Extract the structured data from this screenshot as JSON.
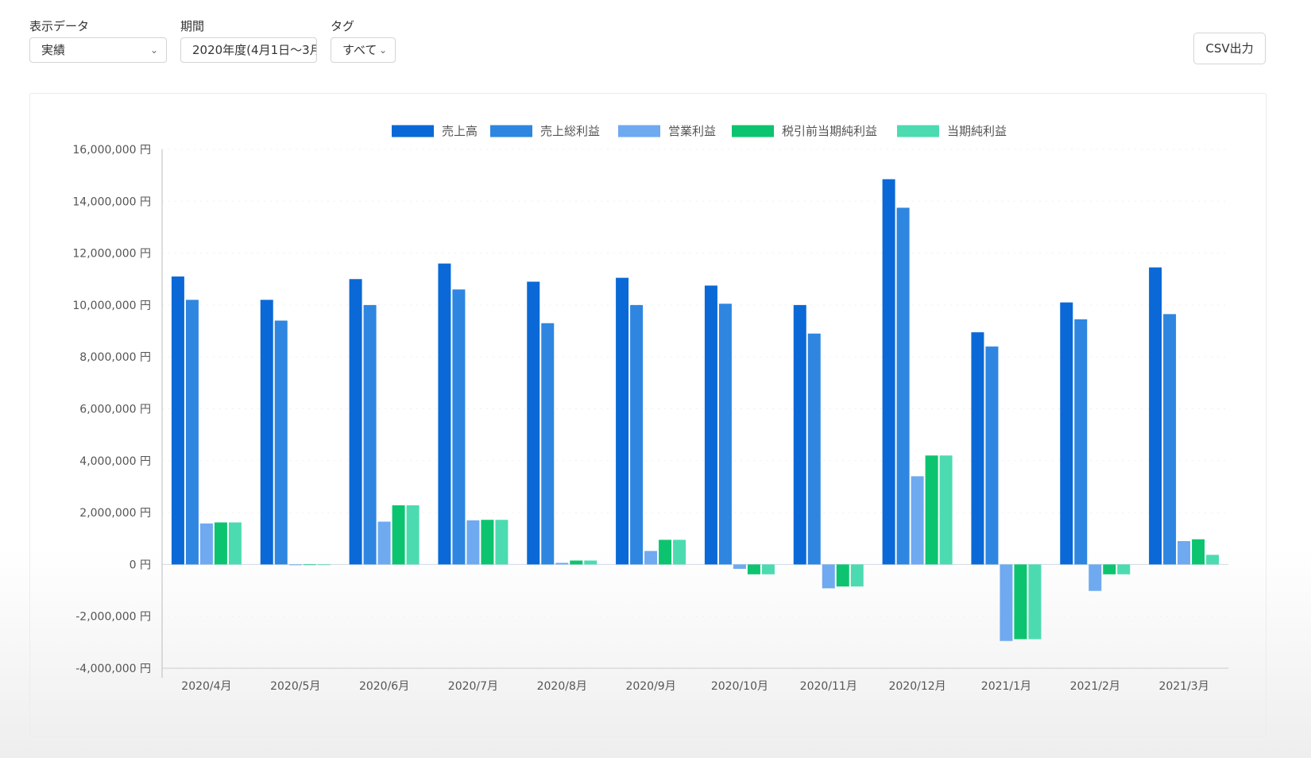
{
  "controls": {
    "display_data": {
      "label": "表示データ",
      "value": "実績"
    },
    "period": {
      "label": "期間",
      "value": "2020年度(4月1日〜3月"
    },
    "tag": {
      "label": "タグ",
      "value": "すべて"
    },
    "csv_button": "CSV出力"
  },
  "colors": {
    "売上高": "#0a69d6",
    "売上総利益": "#2e86e0",
    "営業利益": "#6fa9f0",
    "税引前当期純利益": "#0cc46f",
    "当期純利益": "#4cdbb0"
  },
  "chart_data": {
    "type": "bar",
    "categories": [
      "2020/4月",
      "2020/5月",
      "2020/6月",
      "2020/7月",
      "2020/8月",
      "2020/9月",
      "2020/10月",
      "2020/11月",
      "2020/12月",
      "2021/1月",
      "2021/2月",
      "2021/3月"
    ],
    "series": [
      {
        "name": "売上高",
        "values": [
          11100000,
          10200000,
          11000000,
          11600000,
          10900000,
          11050000,
          10750000,
          10000000,
          14850000,
          8950000,
          10100000,
          11450000
        ]
      },
      {
        "name": "売上総利益",
        "values": [
          10200000,
          9400000,
          10000000,
          10600000,
          9300000,
          10000000,
          10050000,
          8900000,
          13750000,
          8400000,
          9450000,
          9650000
        ]
      },
      {
        "name": "営業利益",
        "values": [
          1580000,
          -30000,
          1650000,
          1700000,
          60000,
          520000,
          -170000,
          -920000,
          3400000,
          -2950000,
          -1020000,
          900000
        ]
      },
      {
        "name": "税引前当期純利益",
        "values": [
          1620000,
          -20000,
          2280000,
          1720000,
          150000,
          950000,
          -380000,
          -850000,
          4200000,
          -2880000,
          -380000,
          970000
        ]
      },
      {
        "name": "当期純利益",
        "values": [
          1620000,
          -20000,
          2280000,
          1720000,
          150000,
          950000,
          -380000,
          -850000,
          4200000,
          -2880000,
          -380000,
          370000
        ]
      }
    ],
    "y_ticks": [
      "16,000,000 円",
      "14,000,000 円",
      "12,000,000 円",
      "10,000,000 円",
      "8,000,000 円",
      "6,000,000 円",
      "4,000,000 円",
      "2,000,000 円",
      "0 円",
      "-2,000,000 円",
      "-4,000,000 円"
    ],
    "ylim": [
      -4000000,
      16000000
    ],
    "legend_position": "top",
    "grid": true
  }
}
